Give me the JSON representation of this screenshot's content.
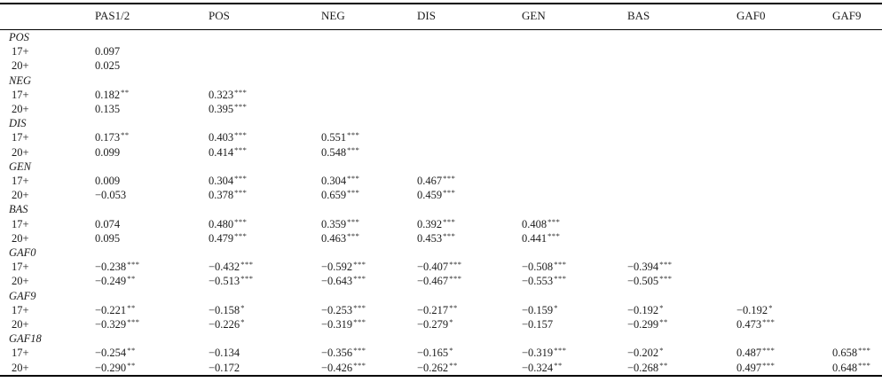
{
  "table": {
    "columns": [
      "",
      "PAS1/2",
      "POS",
      "NEG",
      "DIS",
      "GEN",
      "BAS",
      "GAF0",
      "GAF9"
    ],
    "groups": [
      {
        "label": "POS",
        "rows": [
          {
            "label": "17+",
            "cells": [
              [
                "0.097",
                ""
              ]
            ]
          },
          {
            "label": "20+",
            "cells": [
              [
                "0.025",
                ""
              ]
            ]
          }
        ]
      },
      {
        "label": "NEG",
        "rows": [
          {
            "label": "17+",
            "cells": [
              [
                "0.182",
                "**"
              ],
              [
                "0.323",
                "***"
              ]
            ]
          },
          {
            "label": "20+",
            "cells": [
              [
                "0.135",
                ""
              ],
              [
                "0.395",
                "***"
              ]
            ]
          }
        ]
      },
      {
        "label": "DIS",
        "rows": [
          {
            "label": "17+",
            "cells": [
              [
                "0.173",
                "**"
              ],
              [
                "0.403",
                "***"
              ],
              [
                "0.551",
                "***"
              ]
            ]
          },
          {
            "label": "20+",
            "cells": [
              [
                "0.099",
                ""
              ],
              [
                "0.414",
                "***"
              ],
              [
                "0.548",
                "***"
              ]
            ]
          }
        ]
      },
      {
        "label": "GEN",
        "rows": [
          {
            "label": "17+",
            "cells": [
              [
                "0.009",
                ""
              ],
              [
                "0.304",
                "***"
              ],
              [
                "0.304",
                "***"
              ],
              [
                "0.467",
                "***"
              ]
            ]
          },
          {
            "label": "20+",
            "cells": [
              [
                "−0.053",
                ""
              ],
              [
                "0.378",
                "***"
              ],
              [
                "0.659",
                "***"
              ],
              [
                "0.459",
                "***"
              ]
            ]
          }
        ]
      },
      {
        "label": "BAS",
        "rows": [
          {
            "label": "17+",
            "cells": [
              [
                "0.074",
                ""
              ],
              [
                "0.480",
                "***"
              ],
              [
                "0.359",
                "***"
              ],
              [
                "0.392",
                "***"
              ],
              [
                "0.408",
                "***"
              ]
            ]
          },
          {
            "label": "20+",
            "cells": [
              [
                "0.095",
                ""
              ],
              [
                "0.479",
                "***"
              ],
              [
                "0.463",
                "***"
              ],
              [
                "0.453",
                "***"
              ],
              [
                "0.441",
                "***"
              ]
            ]
          }
        ]
      },
      {
        "label": "GAF0",
        "rows": [
          {
            "label": "17+",
            "cells": [
              [
                "−0.238",
                "***"
              ],
              [
                "−0.432",
                "***"
              ],
              [
                "−0.592",
                "***"
              ],
              [
                "−0.407",
                "***"
              ],
              [
                "−0.508",
                "***"
              ],
              [
                "−0.394",
                "***"
              ]
            ]
          },
          {
            "label": "20+",
            "cells": [
              [
                "−0.249",
                "**"
              ],
              [
                "−0.513",
                "***"
              ],
              [
                "−0.643",
                "***"
              ],
              [
                "−0.467",
                "***"
              ],
              [
                "−0.553",
                "***"
              ],
              [
                "−0.505",
                "***"
              ]
            ]
          }
        ]
      },
      {
        "label": "GAF9",
        "rows": [
          {
            "label": "17+",
            "cells": [
              [
                "−0.221",
                "**"
              ],
              [
                "−0.158",
                "*"
              ],
              [
                "−0.253",
                "***"
              ],
              [
                "−0.217",
                "**"
              ],
              [
                "−0.159",
                "*"
              ],
              [
                "−0.192",
                "*"
              ],
              [
                "−0.192",
                "*"
              ]
            ]
          },
          {
            "label": "20+",
            "cells": [
              [
                "−0.329",
                "***"
              ],
              [
                "−0.226",
                "*"
              ],
              [
                "−0.319",
                "***"
              ],
              [
                "−0.279",
                "*"
              ],
              [
                "−0.157",
                ""
              ],
              [
                "−0.299",
                "**"
              ],
              [
                "0.473",
                "***"
              ]
            ]
          }
        ]
      },
      {
        "label": "GAF18",
        "rows": [
          {
            "label": "17+",
            "cells": [
              [
                "−0.254",
                "**"
              ],
              [
                "−0.134",
                ""
              ],
              [
                "−0.356",
                "***"
              ],
              [
                "−0.165",
                "*"
              ],
              [
                "−0.319",
                "***"
              ],
              [
                "−0.202",
                "*"
              ],
              [
                "0.487",
                "***"
              ],
              [
                "0.658",
                "***"
              ]
            ]
          },
          {
            "label": "20+",
            "cells": [
              [
                "−0.290",
                "**"
              ],
              [
                "−0.172",
                ""
              ],
              [
                "−0.426",
                "***"
              ],
              [
                "−0.262",
                "**"
              ],
              [
                "−0.324",
                "**"
              ],
              [
                "−0.268",
                "**"
              ],
              [
                "0.497",
                "***"
              ],
              [
                "0.648",
                "***"
              ]
            ]
          }
        ]
      }
    ]
  }
}
